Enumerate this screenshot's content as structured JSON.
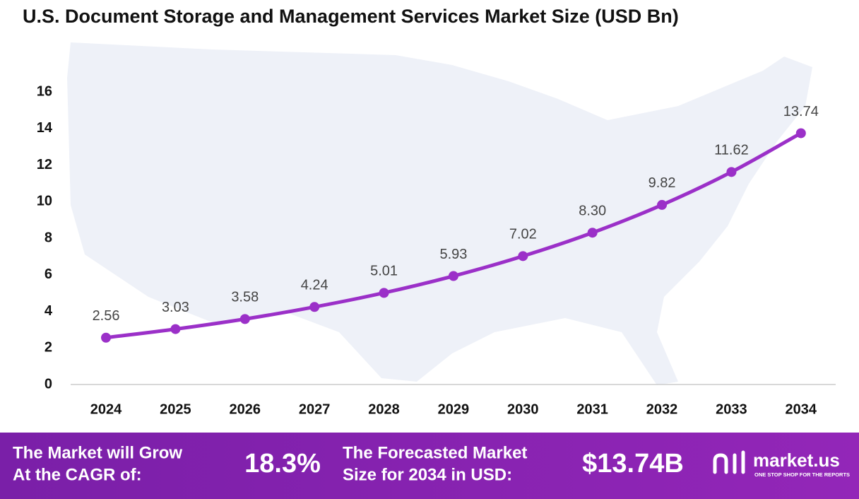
{
  "chart_data": {
    "type": "line",
    "title": "U.S. Document Storage and Management Services Market Size (USD Bn)",
    "categories": [
      "2024",
      "2025",
      "2026",
      "2027",
      "2028",
      "2029",
      "2030",
      "2031",
      "2032",
      "2033",
      "2034"
    ],
    "values": [
      2.56,
      3.03,
      3.58,
      4.24,
      5.01,
      5.93,
      7.02,
      8.3,
      9.82,
      11.62,
      13.74
    ],
    "value_labels": [
      "2.56",
      "3.03",
      "3.58",
      "4.24",
      "5.01",
      "5.93",
      "7.02",
      "8.30",
      "9.82",
      "11.62",
      "13.74"
    ],
    "color": "#9b30c8",
    "ylim": [
      0,
      16
    ],
    "yticks": [
      0,
      2,
      4,
      6,
      8,
      10,
      12,
      14,
      16
    ],
    "grid": false
  },
  "footer": {
    "cagr_text": [
      "The Market will Grow",
      "At the CAGR of:"
    ],
    "cagr_value": "18.3%",
    "forecast_text": [
      "The Forecasted Market",
      "Size for 2034 in USD:"
    ],
    "forecast_value": "$13.74B",
    "brand": "market.us",
    "tagline": "ONE STOP SHOP FOR THE REPORTS"
  }
}
